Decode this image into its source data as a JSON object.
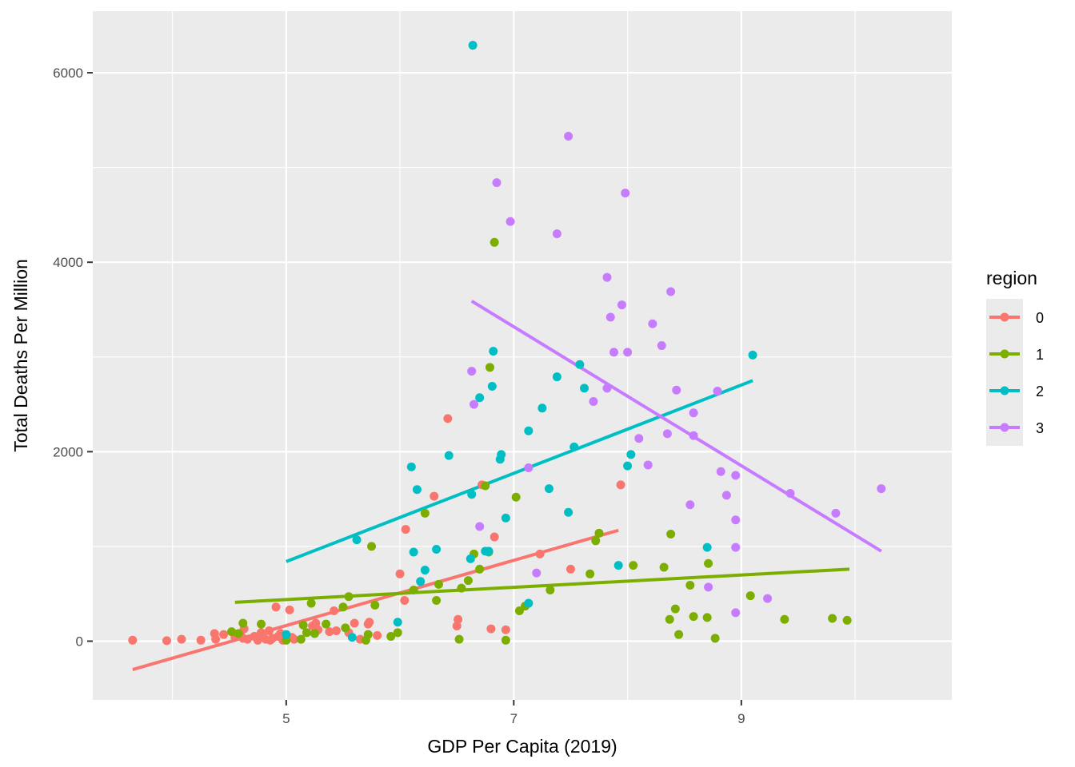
{
  "chart_data": {
    "type": "scatter",
    "title": "",
    "xlabel": "GDP Per Capita (2019)",
    "ylabel": "Total Deaths Per Million",
    "xlim": [
      3.3,
      10.85
    ],
    "ylim": [
      -620,
      6650
    ],
    "x_ticks": [
      5,
      7,
      9
    ],
    "x_tick_labels": [
      "5",
      "7",
      "9"
    ],
    "y_ticks": [
      0,
      2000,
      4000,
      6000
    ],
    "y_tick_labels": [
      "0",
      "2000",
      "4000",
      "6000"
    ],
    "grid": true,
    "legend": {
      "title": "region",
      "position": "right"
    },
    "series": [
      {
        "name": "0",
        "color": "#F8766D",
        "trend": [
          [
            3.65,
            -300
          ],
          [
            7.92,
            1170
          ]
        ],
        "points": [
          [
            3.65,
            10
          ],
          [
            3.95,
            5
          ],
          [
            4.08,
            20
          ],
          [
            4.25,
            10
          ],
          [
            4.37,
            80
          ],
          [
            4.38,
            20
          ],
          [
            4.45,
            70
          ],
          [
            4.55,
            40
          ],
          [
            4.6,
            60
          ],
          [
            4.62,
            30
          ],
          [
            4.63,
            130
          ],
          [
            4.66,
            20
          ],
          [
            4.72,
            50
          ],
          [
            4.75,
            10
          ],
          [
            4.78,
            90
          ],
          [
            4.8,
            40
          ],
          [
            4.82,
            20
          ],
          [
            4.85,
            110
          ],
          [
            4.86,
            10
          ],
          [
            4.88,
            30
          ],
          [
            4.91,
            360
          ],
          [
            4.93,
            50
          ],
          [
            4.95,
            80
          ],
          [
            4.97,
            10
          ],
          [
            5.03,
            330
          ],
          [
            5.05,
            40
          ],
          [
            5.07,
            20
          ],
          [
            5.23,
            160
          ],
          [
            5.26,
            190
          ],
          [
            5.28,
            120
          ],
          [
            5.38,
            100
          ],
          [
            5.42,
            320
          ],
          [
            5.44,
            110
          ],
          [
            5.55,
            90
          ],
          [
            5.6,
            190
          ],
          [
            5.65,
            20
          ],
          [
            5.72,
            180
          ],
          [
            5.73,
            200
          ],
          [
            5.8,
            60
          ],
          [
            6.0,
            710
          ],
          [
            6.05,
            1180
          ],
          [
            6.04,
            430
          ],
          [
            6.3,
            1530
          ],
          [
            6.42,
            2350
          ],
          [
            6.5,
            160
          ],
          [
            6.51,
            230
          ],
          [
            6.72,
            1650
          ],
          [
            6.8,
            130
          ],
          [
            6.83,
            1100
          ],
          [
            6.93,
            120
          ],
          [
            7.23,
            920
          ],
          [
            7.5,
            760
          ],
          [
            7.94,
            1650
          ]
        ]
      },
      {
        "name": "1",
        "color": "#7CAE00",
        "trend": [
          [
            4.55,
            410
          ],
          [
            9.95,
            760
          ]
        ],
        "points": [
          [
            4.52,
            100
          ],
          [
            4.58,
            80
          ],
          [
            4.62,
            190
          ],
          [
            4.78,
            180
          ],
          [
            5.0,
            10
          ],
          [
            5.13,
            20
          ],
          [
            5.15,
            170
          ],
          [
            5.18,
            90
          ],
          [
            5.22,
            400
          ],
          [
            5.25,
            80
          ],
          [
            5.35,
            180
          ],
          [
            5.5,
            360
          ],
          [
            5.52,
            140
          ],
          [
            5.55,
            470
          ],
          [
            5.7,
            10
          ],
          [
            5.72,
            70
          ],
          [
            5.75,
            1000
          ],
          [
            5.78,
            380
          ],
          [
            5.92,
            50
          ],
          [
            5.98,
            90
          ],
          [
            6.12,
            540
          ],
          [
            6.22,
            1350
          ],
          [
            6.32,
            430
          ],
          [
            6.34,
            600
          ],
          [
            6.52,
            20
          ],
          [
            6.54,
            560
          ],
          [
            6.6,
            640
          ],
          [
            6.65,
            920
          ],
          [
            6.7,
            760
          ],
          [
            6.75,
            1640
          ],
          [
            6.78,
            940
          ],
          [
            6.79,
            2890
          ],
          [
            6.83,
            4210
          ],
          [
            6.93,
            10
          ],
          [
            7.02,
            1520
          ],
          [
            7.05,
            320
          ],
          [
            7.1,
            370
          ],
          [
            7.32,
            540
          ],
          [
            7.67,
            710
          ],
          [
            7.72,
            1060
          ],
          [
            7.75,
            1140
          ],
          [
            8.05,
            800
          ],
          [
            8.32,
            780
          ],
          [
            8.38,
            1130
          ],
          [
            8.37,
            230
          ],
          [
            8.42,
            340
          ],
          [
            8.45,
            70
          ],
          [
            8.55,
            590
          ],
          [
            8.58,
            260
          ],
          [
            8.7,
            250
          ],
          [
            8.71,
            820
          ],
          [
            8.77,
            30
          ],
          [
            9.08,
            480
          ],
          [
            9.38,
            230
          ],
          [
            9.8,
            240
          ],
          [
            9.93,
            220
          ]
        ]
      },
      {
        "name": "2",
        "color": "#00BFC4",
        "trend": [
          [
            5.0,
            840
          ],
          [
            9.1,
            2750
          ]
        ],
        "points": [
          [
            5.0,
            70
          ],
          [
            5.58,
            40
          ],
          [
            5.62,
            1070
          ],
          [
            5.98,
            200
          ],
          [
            6.1,
            1840
          ],
          [
            6.12,
            940
          ],
          [
            6.15,
            1600
          ],
          [
            6.18,
            630
          ],
          [
            6.22,
            750
          ],
          [
            6.32,
            970
          ],
          [
            6.43,
            1960
          ],
          [
            6.63,
            1550
          ],
          [
            6.62,
            870
          ],
          [
            6.7,
            2570
          ],
          [
            6.75,
            950
          ],
          [
            6.78,
            950
          ],
          [
            6.82,
            3060
          ],
          [
            6.81,
            2690
          ],
          [
            6.88,
            1920
          ],
          [
            6.89,
            1970
          ],
          [
            6.93,
            1300
          ],
          [
            7.13,
            2220
          ],
          [
            7.13,
            400
          ],
          [
            7.25,
            2460
          ],
          [
            7.31,
            1610
          ],
          [
            7.38,
            2790
          ],
          [
            7.48,
            1360
          ],
          [
            7.53,
            2050
          ],
          [
            7.58,
            2920
          ],
          [
            7.62,
            2670
          ],
          [
            7.92,
            800
          ],
          [
            8.0,
            1850
          ],
          [
            8.03,
            1970
          ],
          [
            8.7,
            990
          ],
          [
            9.1,
            3020
          ],
          [
            6.64,
            6290
          ]
        ]
      },
      {
        "name": "3",
        "color": "#C77CFF",
        "trend": [
          [
            6.63,
            3590
          ],
          [
            10.23,
            950
          ]
        ],
        "points": [
          [
            6.63,
            2850
          ],
          [
            6.65,
            2500
          ],
          [
            6.7,
            1210
          ],
          [
            6.85,
            4840
          ],
          [
            6.97,
            4430
          ],
          [
            7.13,
            1830
          ],
          [
            7.2,
            720
          ],
          [
            7.38,
            4300
          ],
          [
            7.48,
            5330
          ],
          [
            7.7,
            2530
          ],
          [
            7.82,
            3840
          ],
          [
            7.85,
            3420
          ],
          [
            7.88,
            3050
          ],
          [
            7.95,
            3550
          ],
          [
            7.98,
            4730
          ],
          [
            8.0,
            3050
          ],
          [
            7.82,
            2670
          ],
          [
            8.1,
            2140
          ],
          [
            8.18,
            1860
          ],
          [
            8.22,
            3350
          ],
          [
            8.3,
            3120
          ],
          [
            8.35,
            2190
          ],
          [
            8.38,
            3690
          ],
          [
            8.43,
            2650
          ],
          [
            8.55,
            1440
          ],
          [
            8.58,
            2410
          ],
          [
            8.58,
            2170
          ],
          [
            8.71,
            570
          ],
          [
            8.79,
            2640
          ],
          [
            8.82,
            1790
          ],
          [
            8.87,
            1540
          ],
          [
            8.95,
            1280
          ],
          [
            8.95,
            990
          ],
          [
            8.95,
            300
          ],
          [
            8.95,
            1750
          ],
          [
            9.23,
            450
          ],
          [
            9.43,
            1560
          ],
          [
            9.83,
            1350
          ],
          [
            10.23,
            1610
          ]
        ]
      }
    ]
  }
}
